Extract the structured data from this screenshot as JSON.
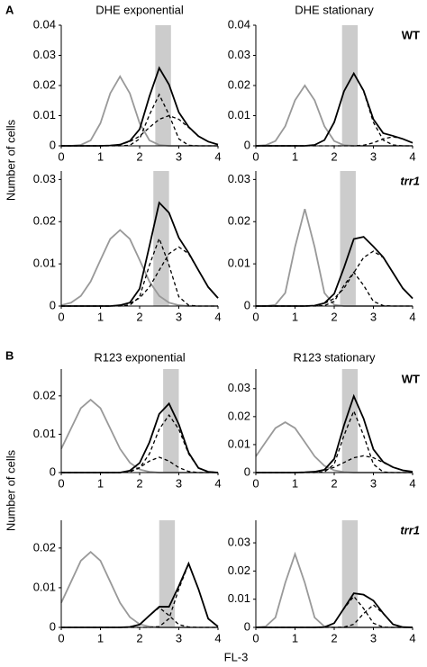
{
  "sections": [
    {
      "label": "A",
      "ylabel": "Number of cells"
    },
    {
      "label": "B",
      "ylabel": "Number of cells"
    }
  ],
  "xlabel": "FL-3",
  "chart_data": [
    {
      "type": "line",
      "title": "DHE exponential",
      "x": [
        0,
        0.25,
        0.5,
        0.75,
        1,
        1.25,
        1.5,
        1.75,
        2,
        2.25,
        2.5,
        2.75,
        3,
        3.25,
        3.5,
        3.75,
        4
      ],
      "xlim": [
        0,
        4
      ],
      "xticks": [
        0,
        1,
        2,
        3,
        4
      ],
      "ylim": [
        0,
        0.04
      ],
      "yticks": [
        0,
        0.01,
        0.02,
        0.03,
        0.04
      ],
      "band": [
        2.4,
        2.8
      ],
      "band_color": "#cccccc",
      "series": [
        {
          "color": "#999999",
          "dashed": false,
          "values": [
            0,
            0,
            0.0003,
            0.0018,
            0.0075,
            0.0174,
            0.023,
            0.0174,
            0.0075,
            0.0018,
            0.0003,
            0,
            0,
            0,
            0,
            0,
            0
          ]
        },
        {
          "color": "#000000",
          "dashed": true,
          "values": [
            0,
            0,
            0,
            0,
            0,
            0,
            0,
            0.0002,
            0.0023,
            0.0103,
            0.017,
            0.0103,
            0.0023,
            0.0002,
            0,
            0,
            0
          ]
        },
        {
          "color": "#000000",
          "dashed": true,
          "values": [
            0,
            0,
            0,
            0,
            0,
            0.0001,
            0.0004,
            0.0014,
            0.0032,
            0.0061,
            0.0088,
            0.01,
            0.0088,
            0.0061,
            0.0032,
            0.0014,
            0.0004
          ]
        },
        {
          "color": "#000000",
          "dashed": false,
          "values": [
            0,
            0,
            0,
            0,
            0,
            0.0001,
            0.0004,
            0.0016,
            0.0055,
            0.0164,
            0.0258,
            0.0203,
            0.0111,
            0.0063,
            0.0032,
            0.0014,
            0.0004
          ]
        }
      ]
    },
    {
      "type": "line",
      "title": "DHE stationary",
      "row_label": "WT",
      "row_label_italic": false,
      "x": [
        0,
        0.25,
        0.5,
        0.75,
        1,
        1.25,
        1.5,
        1.75,
        2,
        2.25,
        2.5,
        2.75,
        3,
        3.25,
        3.5,
        3.75,
        4
      ],
      "xlim": [
        0,
        4
      ],
      "xticks": [
        0,
        1,
        2,
        3,
        4
      ],
      "ylim": [
        0,
        0.04
      ],
      "yticks": [
        0,
        0.01,
        0.02,
        0.03,
        0.04
      ],
      "band": [
        2.2,
        2.6
      ],
      "band_color": "#cccccc",
      "series": [
        {
          "color": "#999999",
          "dashed": false,
          "values": [
            0,
            0.0002,
            0.0016,
            0.0065,
            0.0151,
            0.02,
            0.0151,
            0.0065,
            0.0016,
            0.0002,
            0,
            0,
            0,
            0,
            0,
            0,
            0
          ]
        },
        {
          "color": "#000000",
          "dashed": true,
          "values": [
            0,
            0,
            0,
            0,
            0,
            0,
            0.0003,
            0.0019,
            0.0078,
            0.0181,
            0.024,
            0.0181,
            0.0078,
            0.0019,
            0.0003,
            0,
            0
          ]
        },
        {
          "color": "#000000",
          "dashed": true,
          "values": [
            0,
            0,
            0,
            0,
            0,
            0,
            0,
            0,
            0,
            0,
            0,
            0.0002,
            0.001,
            0.0023,
            0.003,
            0.0023,
            0.001
          ]
        },
        {
          "color": "#000000",
          "dashed": false,
          "values": [
            0,
            0,
            0,
            0,
            0,
            0,
            0.0003,
            0.0019,
            0.0078,
            0.0181,
            0.024,
            0.0183,
            0.0088,
            0.0042,
            0.0033,
            0.0023,
            0.001
          ]
        }
      ]
    },
    {
      "type": "line",
      "x": [
        0,
        0.25,
        0.5,
        0.75,
        1,
        1.25,
        1.5,
        1.75,
        2,
        2.25,
        2.5,
        2.75,
        3,
        3.25,
        3.5,
        3.75,
        4
      ],
      "xlim": [
        0,
        4
      ],
      "xticks": [
        0,
        1,
        2,
        3,
        4
      ],
      "ylim": [
        0,
        0.032
      ],
      "yticks": [
        0,
        0.01,
        0.02,
        0.03
      ],
      "band": [
        2.35,
        2.75
      ],
      "band_color": "#cccccc",
      "series": [
        {
          "color": "#999999",
          "dashed": false,
          "values": [
            0.0002,
            0.0008,
            0.0024,
            0.0058,
            0.0109,
            0.0159,
            0.018,
            0.0159,
            0.0109,
            0.0058,
            0.0024,
            0.0008,
            0.0002,
            0,
            0,
            0,
            0
          ]
        },
        {
          "color": "#000000",
          "dashed": true,
          "values": [
            0,
            0,
            0,
            0,
            0,
            0,
            0,
            0.0002,
            0.0022,
            0.0097,
            0.016,
            0.0097,
            0.0022,
            0.0002,
            0,
            0,
            0
          ]
        },
        {
          "color": "#000000",
          "dashed": true,
          "values": [
            0,
            0,
            0,
            0,
            0,
            0,
            0.0002,
            0.0006,
            0.0019,
            0.0045,
            0.0085,
            0.0124,
            0.014,
            0.0124,
            0.0085,
            0.0045,
            0.0019
          ]
        },
        {
          "color": "#000000",
          "dashed": false,
          "values": [
            0,
            0,
            0,
            0,
            0,
            0,
            0.0002,
            0.0008,
            0.0041,
            0.0142,
            0.0245,
            0.0221,
            0.0162,
            0.0126,
            0.0085,
            0.0045,
            0.0019
          ]
        }
      ]
    },
    {
      "type": "line",
      "row_label": "trr1",
      "row_label_italic": true,
      "x": [
        0,
        0.25,
        0.5,
        0.75,
        1,
        1.25,
        1.5,
        1.75,
        2,
        2.25,
        2.5,
        2.75,
        3,
        3.25,
        3.5,
        3.75,
        4
      ],
      "xlim": [
        0,
        4
      ],
      "xticks": [
        0,
        1,
        2,
        3,
        4
      ],
      "ylim": [
        0,
        0.032
      ],
      "yticks": [
        0,
        0.01,
        0.02,
        0.03
      ],
      "band": [
        2.15,
        2.55
      ],
      "band_color": "#cccccc",
      "series": [
        {
          "color": "#999999",
          "dashed": false,
          "values": [
            0,
            0,
            0.0003,
            0.0031,
            0.014,
            0.023,
            0.014,
            0.0031,
            0.0003,
            0,
            0,
            0,
            0,
            0,
            0,
            0,
            0
          ]
        },
        {
          "color": "#000000",
          "dashed": true,
          "values": [
            0,
            0,
            0,
            0,
            0,
            0,
            0,
            0.0001,
            0.0011,
            0.0049,
            0.008,
            0.0049,
            0.0011,
            0.0001,
            0,
            0,
            0
          ]
        },
        {
          "color": "#000000",
          "dashed": true,
          "values": [
            0,
            0,
            0,
            0,
            0,
            0,
            0.0001,
            0.0006,
            0.0018,
            0.0042,
            0.0079,
            0.0115,
            0.013,
            0.0115,
            0.0079,
            0.0042,
            0.0018
          ]
        },
        {
          "color": "#000000",
          "dashed": false,
          "values": [
            0,
            0,
            0,
            0,
            0,
            0,
            0.0001,
            0.0007,
            0.0029,
            0.0091,
            0.0159,
            0.0164,
            0.0141,
            0.0116,
            0.0079,
            0.0042,
            0.0018
          ]
        }
      ]
    },
    {
      "type": "line",
      "title": "R123 exponential",
      "x": [
        0,
        0.25,
        0.5,
        0.75,
        1,
        1.25,
        1.5,
        1.75,
        2,
        2.25,
        2.5,
        2.75,
        3,
        3.25,
        3.5,
        3.75,
        4
      ],
      "xlim": [
        0,
        4
      ],
      "xticks": [
        0,
        1,
        2,
        3,
        4
      ],
      "ylim": [
        0,
        0.027
      ],
      "yticks": [
        0,
        0.01,
        0.02
      ],
      "band": [
        2.6,
        3
      ],
      "band_color": "#cccccc",
      "series": [
        {
          "color": "#999999",
          "dashed": false,
          "values": [
            0.0062,
            0.0115,
            0.0168,
            0.019,
            0.0168,
            0.0115,
            0.0062,
            0.0026,
            0.0008,
            0.0002,
            0,
            0,
            0,
            0,
            0,
            0,
            0
          ]
        },
        {
          "color": "#000000",
          "dashed": true,
          "values": [
            0,
            0,
            0,
            0,
            0,
            0,
            0,
            0.0003,
            0.0013,
            0.003,
            0.004,
            0.003,
            0.0013,
            0.0003,
            0,
            0,
            0
          ]
        },
        {
          "color": "#000000",
          "dashed": true,
          "values": [
            0,
            0,
            0,
            0,
            0,
            0,
            0,
            0.0002,
            0.0012,
            0.0049,
            0.0113,
            0.015,
            0.0113,
            0.0049,
            0.0012,
            0.0002,
            0
          ]
        },
        {
          "color": "#000000",
          "dashed": false,
          "values": [
            0,
            0,
            0,
            0,
            0,
            0,
            0,
            0.0005,
            0.0025,
            0.0079,
            0.0153,
            0.018,
            0.0126,
            0.0052,
            0.0012,
            0.0002,
            0
          ]
        }
      ]
    },
    {
      "type": "line",
      "title": "R123 stationary",
      "row_label": "WT",
      "row_label_italic": false,
      "x": [
        0,
        0.25,
        0.5,
        0.75,
        1,
        1.25,
        1.5,
        1.75,
        2,
        2.25,
        2.5,
        2.75,
        3,
        3.25,
        3.5,
        3.75,
        4
      ],
      "xlim": [
        0,
        4
      ],
      "xticks": [
        0,
        1,
        2,
        3,
        4
      ],
      "ylim": [
        0,
        0.037
      ],
      "yticks": [
        0,
        0.01,
        0.02,
        0.03
      ],
      "band": [
        2.2,
        2.6
      ],
      "band_color": "#cccccc",
      "series": [
        {
          "color": "#999999",
          "dashed": false,
          "values": [
            0.0058,
            0.0109,
            0.0159,
            0.018,
            0.0159,
            0.0109,
            0.0058,
            0.0024,
            0.0008,
            0.0002,
            0,
            0,
            0,
            0,
            0,
            0,
            0
          ]
        },
        {
          "color": "#000000",
          "dashed": true,
          "values": [
            0,
            0,
            0,
            0,
            0,
            0,
            0,
            0.0002,
            0.003,
            0.0133,
            0.022,
            0.0133,
            0.003,
            0.0002,
            0,
            0,
            0
          ]
        },
        {
          "color": "#000000",
          "dashed": true,
          "values": [
            0,
            0,
            0,
            0,
            0,
            0.0001,
            0.0003,
            0.0008,
            0.0019,
            0.0036,
            0.0053,
            0.006,
            0.0053,
            0.0036,
            0.0019,
            0.0008,
            0.0003
          ]
        },
        {
          "color": "#000000",
          "dashed": false,
          "values": [
            0,
            0,
            0,
            0,
            0,
            0.0001,
            0.0003,
            0.001,
            0.0049,
            0.0169,
            0.0273,
            0.0193,
            0.0083,
            0.0038,
            0.0019,
            0.0008,
            0.0003
          ]
        }
      ]
    },
    {
      "type": "line",
      "x": [
        0,
        0.25,
        0.5,
        0.75,
        1,
        1.25,
        1.5,
        1.75,
        2,
        2.25,
        2.5,
        2.75,
        3,
        3.25,
        3.5,
        3.75,
        4
      ],
      "xlim": [
        0,
        4
      ],
      "xticks": [
        0,
        1,
        2,
        3,
        4
      ],
      "ylim": [
        0,
        0.027
      ],
      "yticks": [
        0,
        0.01,
        0.02
      ],
      "band": [
        2.5,
        2.9
      ],
      "band_color": "#cccccc",
      "series": [
        {
          "color": "#999999",
          "dashed": false,
          "values": [
            0.0062,
            0.0115,
            0.0168,
            0.019,
            0.0168,
            0.0115,
            0.0062,
            0.0026,
            0.0008,
            0.0002,
            0,
            0,
            0,
            0,
            0,
            0,
            0
          ]
        },
        {
          "color": "#000000",
          "dashed": true,
          "values": [
            0,
            0,
            0,
            0,
            0,
            0,
            0,
            0.0001,
            0.0007,
            0.003,
            0.005,
            0.003,
            0.0007,
            0.0001,
            0,
            0,
            0
          ]
        },
        {
          "color": "#000000",
          "dashed": true,
          "values": [
            0,
            0,
            0,
            0,
            0,
            0,
            0,
            0,
            0,
            0,
            0.0002,
            0.0022,
            0.0097,
            0.016,
            0.0097,
            0.0022,
            0.0002
          ]
        },
        {
          "color": "#000000",
          "dashed": false,
          "values": [
            0,
            0,
            0,
            0,
            0,
            0,
            0,
            0.0001,
            0.0007,
            0.003,
            0.0052,
            0.0052,
            0.0104,
            0.0161,
            0.0097,
            0.0022,
            0.0002
          ]
        }
      ]
    },
    {
      "type": "line",
      "row_label": "trr1",
      "row_label_italic": true,
      "x": [
        0,
        0.25,
        0.5,
        0.75,
        1,
        1.25,
        1.5,
        1.75,
        2,
        2.25,
        2.5,
        2.75,
        3,
        3.25,
        3.5,
        3.75,
        4
      ],
      "xlim": [
        0,
        4
      ],
      "xticks": [
        0,
        1,
        2,
        3,
        4
      ],
      "ylim": [
        0,
        0.038
      ],
      "yticks": [
        0,
        0.01,
        0.02,
        0.03
      ],
      "band": [
        2.2,
        2.6
      ],
      "band_color": "#cccccc",
      "series": [
        {
          "color": "#999999",
          "dashed": false,
          "values": [
            0,
            0.0003,
            0.0035,
            0.0158,
            0.026,
            0.0158,
            0.0035,
            0.0003,
            0,
            0,
            0,
            0,
            0,
            0,
            0,
            0,
            0
          ]
        },
        {
          "color": "#000000",
          "dashed": true,
          "values": [
            0,
            0,
            0,
            0,
            0,
            0,
            0,
            0.0001,
            0.0015,
            0.0067,
            0.011,
            0.0067,
            0.0015,
            0.0001,
            0,
            0,
            0
          ]
        },
        {
          "color": "#000000",
          "dashed": true,
          "values": [
            0,
            0,
            0,
            0,
            0,
            0,
            0,
            0,
            0,
            0.0001,
            0.0011,
            0.0049,
            0.008,
            0.0049,
            0.0011,
            0.0001,
            0
          ]
        },
        {
          "color": "#000000",
          "dashed": false,
          "values": [
            0,
            0,
            0,
            0,
            0,
            0,
            0,
            0.0001,
            0.0015,
            0.0068,
            0.0121,
            0.0116,
            0.0095,
            0.005,
            0.0011,
            0.0001,
            0
          ]
        }
      ]
    }
  ]
}
